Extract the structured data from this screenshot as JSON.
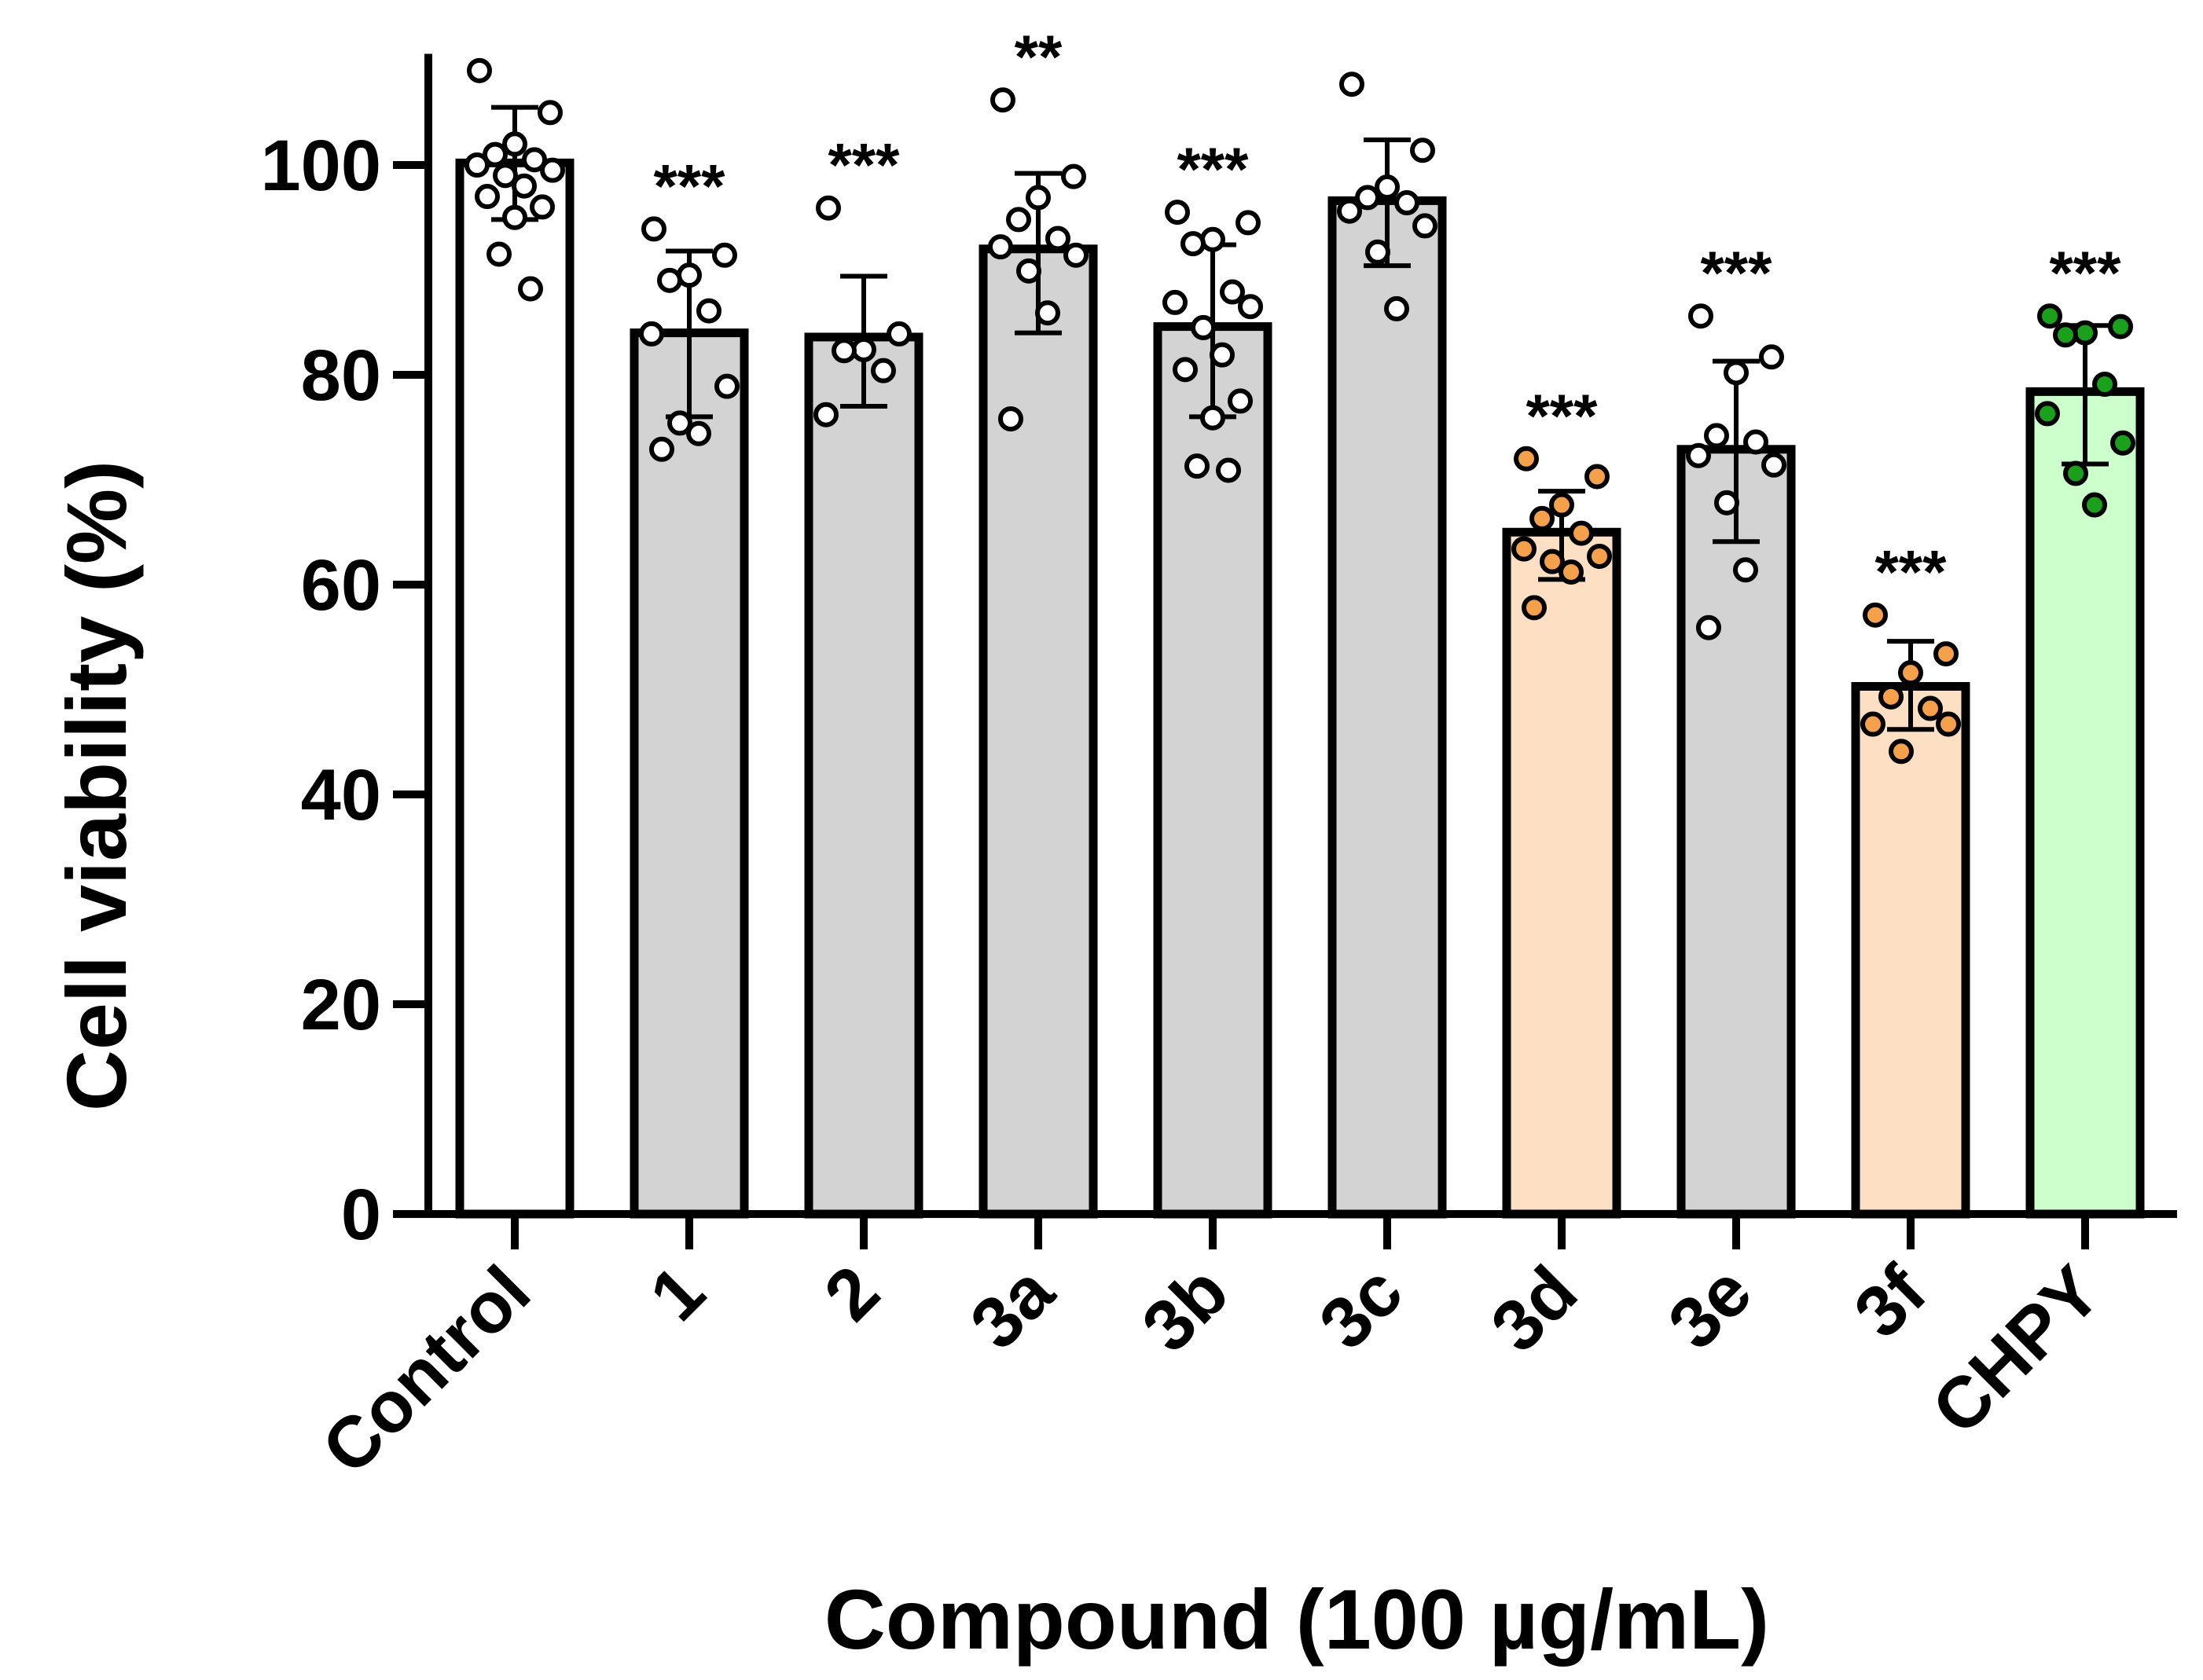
{
  "chart_data": {
    "type": "bar",
    "title": "",
    "xlabel": "Compound (100 µg/mL)",
    "ylabel": "Cell viability (%)",
    "ylim": [
      0,
      110
    ],
    "yticks": [
      "0",
      "20",
      "40",
      "60",
      "80",
      "100"
    ],
    "colors": {
      "gray": "#d3d3d3",
      "orange_fill": "#fde0c4",
      "green_fill": "#ccffcc",
      "white": "#ffffff",
      "orange_point": "#f5a04a",
      "green_point": "#1aa01a"
    },
    "categories": [
      "Control",
      "1",
      "2",
      "3a",
      "3b",
      "3c",
      "3d",
      "3e",
      "3f",
      "CHPY"
    ],
    "bars": [
      {
        "label": "Control",
        "mean": 100.2,
        "sd_low": 94.8,
        "sd_high": 105.5,
        "fill": "white",
        "point": "white",
        "significance": "",
        "points": [
          109,
          105,
          102,
          101,
          100.5,
          100,
          99.5,
          99,
          98,
          97,
          96,
          95,
          91.5,
          88.2
        ]
      },
      {
        "label": "1",
        "mean": 84,
        "sd_low": 76,
        "sd_high": 91.8,
        "fill": "gray",
        "point": "white",
        "significance": "***",
        "points": [
          93.9,
          91.4,
          89.5,
          89,
          86.1,
          83.9,
          78.9,
          75.4,
          74.4,
          72.9
        ]
      },
      {
        "label": "2",
        "mean": 83.6,
        "sd_low": 77,
        "sd_high": 89.4,
        "fill": "gray",
        "point": "white",
        "significance": "***",
        "points": [
          95.9,
          83.9,
          82.4,
          82.3,
          80.4,
          76.2
        ]
      },
      {
        "label": "3a",
        "mean": 92,
        "sd_low": 84,
        "sd_high": 99.2,
        "fill": "gray",
        "point": "white",
        "significance": "**",
        "points": [
          106.2,
          98.9,
          96.9,
          94.8,
          93,
          92.2,
          91.4,
          89.9,
          85.9,
          75.8
        ]
      },
      {
        "label": "3b",
        "mean": 84.6,
        "sd_low": 76,
        "sd_high": 92.4,
        "fill": "gray",
        "point": "white",
        "significance": "***",
        "points": [
          95.5,
          94.5,
          92.9,
          92.5,
          87.9,
          86.9,
          86.5,
          84.5,
          81.9,
          80.5,
          77.5,
          75.9,
          71.3,
          70.9
        ]
      },
      {
        "label": "3c",
        "mean": 96.6,
        "sd_low": 90.4,
        "sd_high": 102.4,
        "fill": "gray",
        "point": "white",
        "significance": "",
        "points": [
          107.7,
          101.4,
          97.9,
          96.9,
          96.4,
          95.6,
          94.2,
          91.7,
          86.3
        ]
      },
      {
        "label": "3d",
        "mean": 65,
        "sd_low": 60.5,
        "sd_high": 68.9,
        "fill": "orange_fill",
        "point": "orange_point",
        "significance": "***",
        "points": [
          72,
          70.3,
          67.6,
          66.3,
          64.9,
          63.4,
          62.7,
          62.2,
          61.2,
          57.8
        ]
      },
      {
        "label": "3e",
        "mean": 72.9,
        "sd_low": 64.1,
        "sd_high": 81.3,
        "fill": "gray",
        "point": "white",
        "significance": "***",
        "points": [
          85.6,
          81.7,
          80.2,
          74.2,
          73.6,
          72.3,
          71.4,
          67.8,
          61.4,
          55.9
        ]
      },
      {
        "label": "3f",
        "mean": 50.3,
        "sd_low": 46.2,
        "sd_high": 54.6,
        "fill": "orange_fill",
        "point": "orange_point",
        "significance": "***",
        "points": [
          57.1,
          53.4,
          51.6,
          49.3,
          48.2,
          46.7,
          46.7,
          44.1
        ]
      },
      {
        "label": "CHPY",
        "mean": 78.4,
        "sd_low": 71.5,
        "sd_high": 84.7,
        "fill": "green_fill",
        "point": "green_point",
        "significance": "***",
        "points": [
          85.6,
          84.6,
          84,
          83.8,
          79.1,
          76.3,
          73.5,
          70.6,
          67.6
        ]
      }
    ]
  }
}
